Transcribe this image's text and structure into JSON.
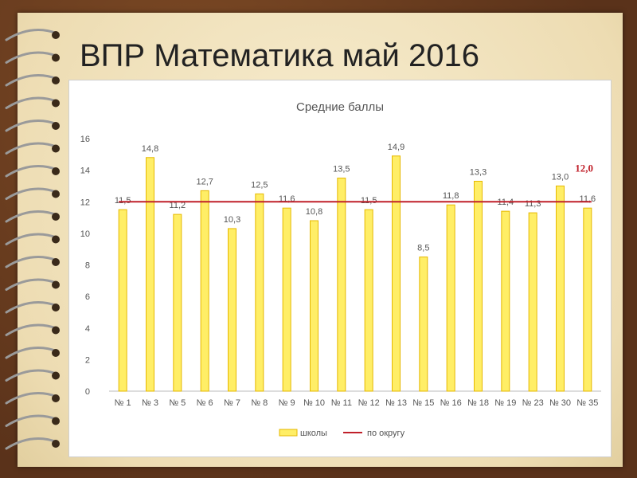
{
  "slide": {
    "title": "ВПР Математика май 2016"
  },
  "colors": {
    "bar_fill": "#ffee66",
    "bar_stroke": "#e6b800",
    "line": "#c0202a",
    "avg_label": "#c0202a"
  },
  "chart_data": {
    "type": "bar",
    "title": "Средние баллы",
    "categories": [
      "№ 1",
      "№ 3",
      "№ 5",
      "№ 6",
      "№ 7",
      "№ 8",
      "№ 9",
      "№ 10",
      "№ 11",
      "№ 12",
      "№ 13",
      "№ 15",
      "№ 16",
      "№ 18",
      "№ 19",
      "№ 23",
      "№ 30",
      "№ 35"
    ],
    "series": [
      {
        "name": "школы",
        "values": [
          11.5,
          14.8,
          11.2,
          12.7,
          10.3,
          12.5,
          11.6,
          10.8,
          13.5,
          11.5,
          14.9,
          8.5,
          11.8,
          13.3,
          11.4,
          11.3,
          13.0,
          11.6
        ]
      },
      {
        "name": "по округу",
        "type": "line",
        "value": 12.0
      }
    ],
    "value_labels": [
      "11,5",
      "14,8",
      "11,2",
      "12,7",
      "10,3",
      "12,5",
      "11,6",
      "10,8",
      "13,5",
      "11,5",
      "14,9",
      "8,5",
      "11,8",
      "13,3",
      "11,4",
      "11,3",
      "13,0",
      "11,6"
    ],
    "average_label": "12,0",
    "yticks": [
      "0",
      "2",
      "4",
      "6",
      "8",
      "10",
      "12",
      "14",
      "16"
    ],
    "ylim": [
      0,
      16
    ],
    "xlabel": "",
    "ylabel": "",
    "grid": false,
    "legend_position": "bottom"
  }
}
